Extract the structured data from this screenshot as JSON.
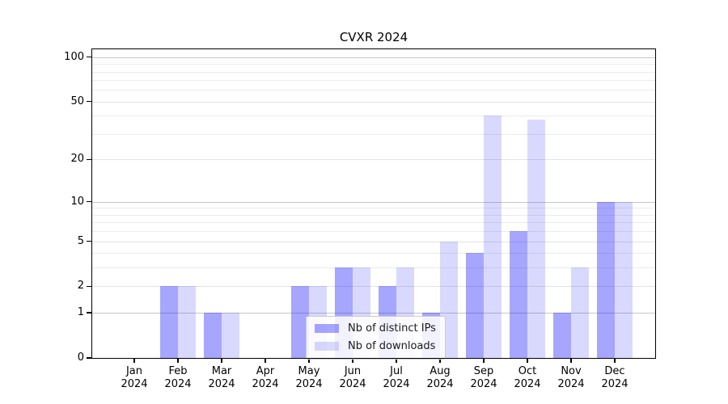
{
  "title": "CVXR 2024",
  "chart_data": {
    "type": "bar",
    "title": "CVXR 2024",
    "categories": [
      "Jan",
      "Feb",
      "Mar",
      "Apr",
      "May",
      "Jun",
      "Jul",
      "Aug",
      "Sep",
      "Oct",
      "Nov",
      "Dec"
    ],
    "category_year": "2024",
    "series": [
      {
        "name": "Nb of distinct IPs",
        "color": "rgba(0,0,255,0.35)",
        "values": [
          0,
          2,
          1,
          0,
          2,
          3,
          2,
          1,
          4,
          6,
          1,
          10
        ]
      },
      {
        "name": "Nb of downloads",
        "color": "rgba(0,0,255,0.15)",
        "values": [
          0,
          2,
          1,
          0,
          2,
          3,
          3,
          5,
          40,
          38,
          3,
          10
        ]
      }
    ],
    "xlabel": "",
    "ylabel": "",
    "yscale": "log10(1+v)",
    "ylim": [
      0,
      113
    ],
    "yticks": [
      0,
      1,
      2,
      5,
      10,
      20,
      50,
      100
    ],
    "ytick_labels": [
      "0",
      "1",
      "2",
      "5",
      "10",
      "20",
      "50",
      "100"
    ],
    "decade_grid_values": [
      1,
      10,
      100
    ],
    "minor_grid_values": [
      3,
      4,
      6,
      7,
      8,
      9,
      30,
      40,
      60,
      70,
      80,
      90
    ],
    "grid": true,
    "legend_position": "lower center"
  },
  "legend": {
    "items": [
      {
        "label": "Nb of distinct IPs"
      },
      {
        "label": "Nb of downloads"
      }
    ]
  }
}
